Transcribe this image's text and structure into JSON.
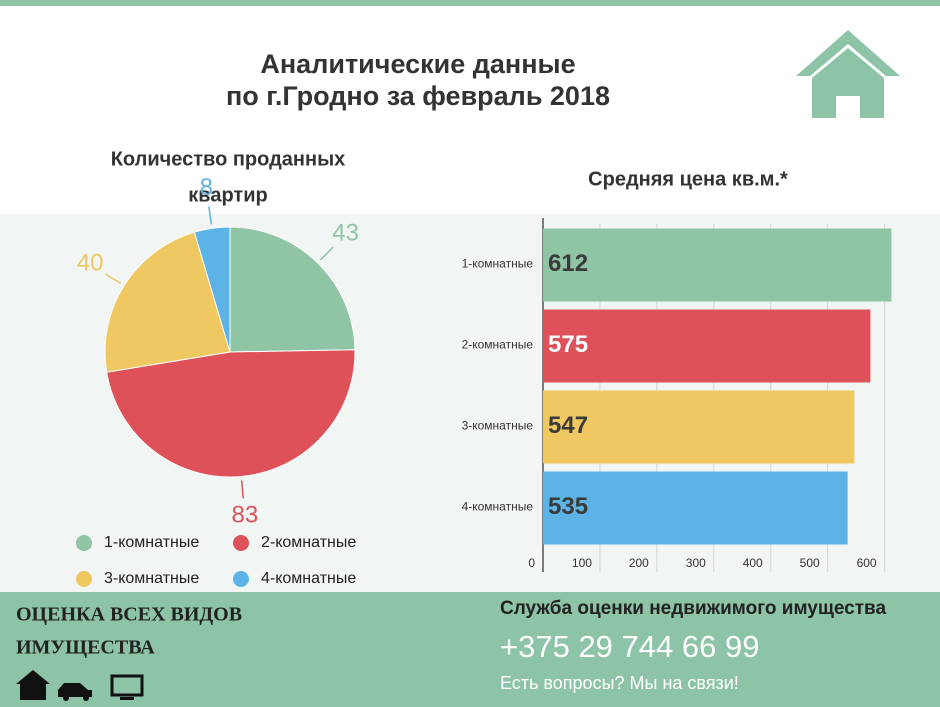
{
  "title": [
    "Аналитические данные",
    "по г.Гродно за февраль 2018"
  ],
  "chart_data": [
    {
      "type": "pie",
      "title": [
        "Количество проданных",
        "квартир"
      ],
      "categories": [
        "1-комнатные",
        "2-комнатные",
        "3-комнатные",
        "4-комнатные"
      ],
      "values": [
        43,
        83,
        40,
        8
      ],
      "colors": [
        "#8fc4a4",
        "#de5158",
        "#f0c862",
        "#5bb4e5"
      ]
    },
    {
      "type": "hbar",
      "title": "Средняя цена кв.м.*",
      "categories": [
        "1-комнатные",
        "2-комнатные",
        "3-комнатные",
        "4-комнатные"
      ],
      "values": [
        612,
        575,
        547,
        535
      ],
      "colors": [
        "#8fc4a4",
        "#de5158",
        "#f0c862",
        "#5bb4e5"
      ],
      "label_colors": [
        "#3a3a3a",
        "#ffffff",
        "#3a3a3a",
        "#3a3a3a"
      ],
      "xlim": [
        0,
        620
      ],
      "xticks": [
        0,
        100,
        200,
        300,
        400,
        500,
        600
      ],
      "grid": true
    }
  ],
  "footer": {
    "left": [
      "ОЦЕНКА ВСЕХ ВИДОВ",
      "ИМУЩЕСТВА"
    ],
    "service": "Служба оценки недвижимого имущества",
    "phone": "+375 29 744 66 99",
    "note": "Есть вопросы? Мы на связи!"
  }
}
